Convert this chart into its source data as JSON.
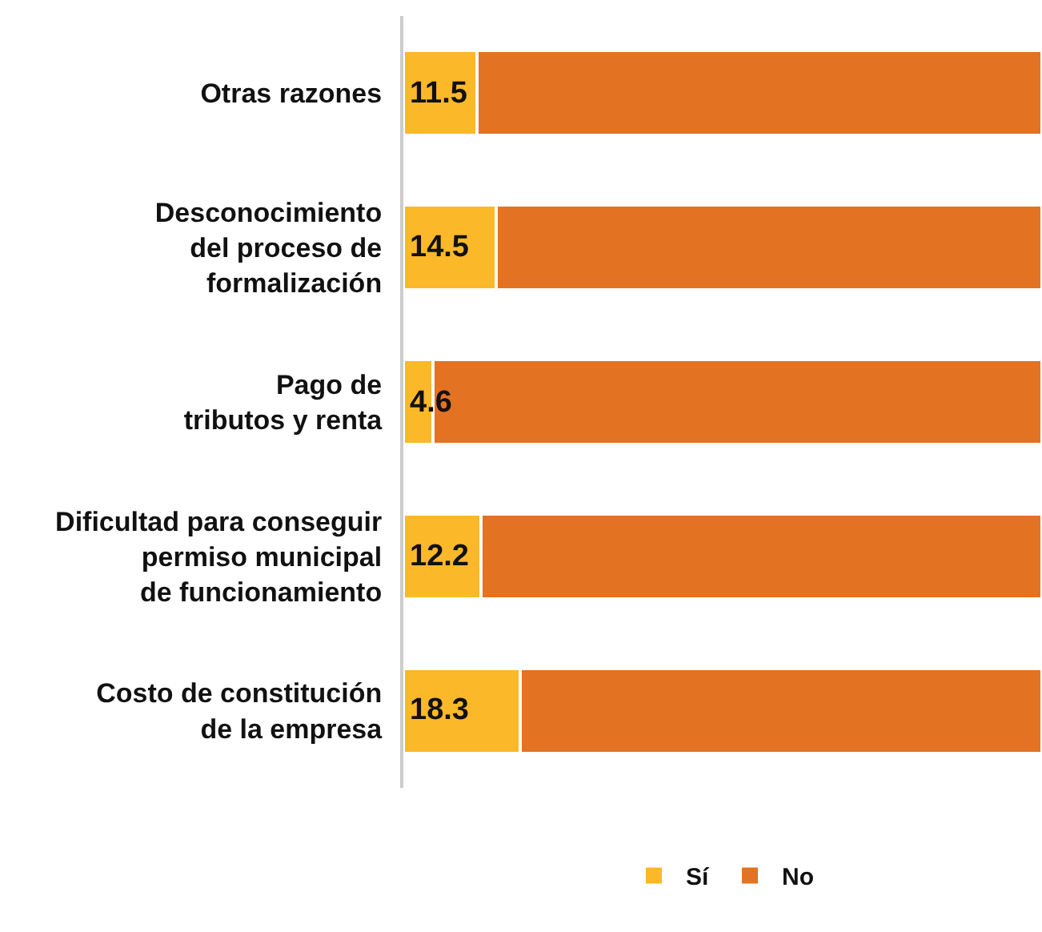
{
  "chart_data": {
    "type": "bar",
    "orientation": "horizontal",
    "stacked": true,
    "categories": [
      "Otras razones",
      "Desconocimiento\ndel proceso de\nformalización",
      "Pago de\ntributos y renta",
      "Dificultad para conseguir\npermiso municipal\nde funcionamiento",
      "Costo de constitución\nde la empresa"
    ],
    "series": [
      {
        "name": "Sí",
        "color": "#fbb829",
        "values": [
          11.5,
          14.5,
          4.6,
          12.2,
          18.3
        ],
        "value_labels": [
          "11.5",
          "14.5",
          "4.6",
          "12.2",
          "18.3"
        ]
      },
      {
        "name": "No",
        "color": "#e37222",
        "values": [
          88.5,
          85.5,
          95.4,
          87.8,
          81.7
        ]
      }
    ],
    "xlim": [
      0,
      100
    ],
    "tick_labels": "y",
    "legend": "bottom"
  }
}
